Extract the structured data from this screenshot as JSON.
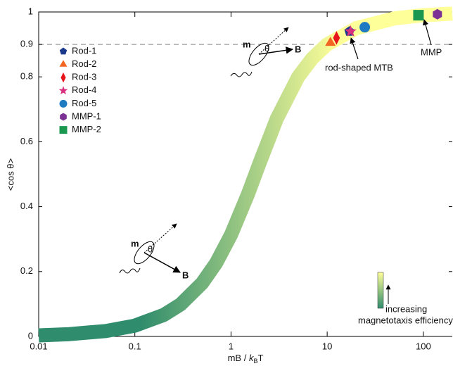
{
  "chart_data": {
    "type": "scatter",
    "ylabel": "<cos θ>",
    "xlabel": [
      "mB / ",
      "k",
      "B",
      "T"
    ],
    "xlim": [
      0.01,
      200
    ],
    "ylim": [
      0,
      1
    ],
    "log_x": true,
    "xticks": [
      0.01,
      0.1,
      1,
      10,
      100
    ],
    "yticks": [
      0,
      0.2,
      0.4,
      0.6,
      0.8,
      0.9,
      1
    ],
    "hline": 0.9,
    "curve": {
      "x": [
        0.01,
        0.02,
        0.05,
        0.1,
        0.2,
        0.3,
        0.5,
        0.7,
        1,
        1.5,
        2,
        3,
        5,
        7,
        10,
        20,
        50,
        100,
        200
      ],
      "values": [
        0.0033,
        0.0067,
        0.0167,
        0.0333,
        0.0663,
        0.0991,
        0.164,
        0.226,
        0.313,
        0.4381,
        0.5373,
        0.6716,
        0.8,
        0.8571,
        0.9,
        0.95,
        0.98,
        0.99,
        0.995
      ],
      "colors": [
        "#2f8c6c",
        "#ffff99"
      ]
    },
    "series": [
      {
        "name": "Rod-1",
        "color": "#1c3a8c",
        "marker": "pentagon",
        "x": [
          17
        ],
        "values": [
          0.94
        ]
      },
      {
        "name": "Rod-2",
        "color": "#f26522",
        "marker": "triangle",
        "x": [
          10.8
        ],
        "values": [
          0.905
        ]
      },
      {
        "name": "Rod-3",
        "color": "#e8141b",
        "marker": "diamond",
        "x": [
          12.5
        ],
        "values": [
          0.92
        ]
      },
      {
        "name": "Rod-4",
        "color": "#d6307e",
        "marker": "star",
        "x": [
          17.5
        ],
        "values": [
          0.94
        ]
      },
      {
        "name": "Rod-5",
        "color": "#1f7bc1",
        "marker": "circle",
        "x": [
          24.6
        ],
        "values": [
          0.953
        ]
      },
      {
        "name": "MMP-1",
        "color": "#7b3294",
        "marker": "hexagon",
        "x": [
          140
        ],
        "values": [
          0.993
        ]
      },
      {
        "name": "MMP-2",
        "color": "#1a9850",
        "marker": "square",
        "x": [
          89
        ],
        "values": [
          0.99
        ]
      }
    ],
    "annotations": [
      "rod-shaped MTB",
      "MMP"
    ],
    "diagram_labels": [
      "m",
      "θ",
      "B"
    ],
    "colorbar_label": [
      "increasing",
      "magnetotaxis efficiency"
    ]
  }
}
